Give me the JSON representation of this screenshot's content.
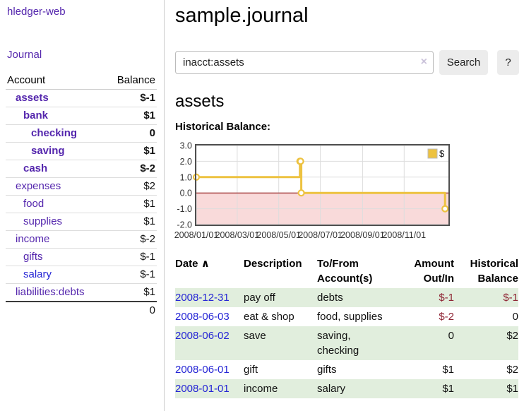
{
  "colors": {
    "link_purple": "#5426ad",
    "link_blue": "#2525d5",
    "negative_strong": "#8e2333",
    "negative_soft": "#c2868c",
    "row_stripe_green": "#e1eedd",
    "chart_series_gold": "#edc240",
    "chart_negative_fill": "#f9dada",
    "chart_zero_line": "#8b0000"
  },
  "app_title": "hledger-web",
  "sidebar": {
    "nav_journal": "Journal",
    "accounts": {
      "header_account": "Account",
      "header_balance": "Balance",
      "rows": [
        {
          "label": "assets",
          "balance": "$-1"
        },
        {
          "label": "bank",
          "balance": "$1"
        },
        {
          "label": "checking",
          "balance": "0"
        },
        {
          "label": "saving",
          "balance": "$1"
        },
        {
          "label": "cash",
          "balance": "$-2"
        },
        {
          "label": "expenses",
          "balance": "$2"
        },
        {
          "label": "food",
          "balance": "$1"
        },
        {
          "label": "supplies",
          "balance": "$1"
        },
        {
          "label": "income",
          "balance": "$-2"
        },
        {
          "label": "gifts",
          "balance": "$-1"
        },
        {
          "label": "salary",
          "balance": "$-1"
        },
        {
          "label": "liabilities:debts",
          "balance": "$1"
        }
      ],
      "total": "0"
    }
  },
  "main": {
    "title": "sample.journal",
    "search": {
      "value": "inacct:assets",
      "clear_icon": "×",
      "search_button": "Search",
      "help_button": "?"
    },
    "account_heading": "assets",
    "chart_title": "Historical Balance:"
  },
  "chart_data": {
    "type": "line",
    "title": "Historical Balance:",
    "step": true,
    "series": [
      {
        "name": "$",
        "color": "#edc240",
        "points": [
          [
            "2008-01-01",
            1
          ],
          [
            "2008-06-01",
            2
          ],
          [
            "2008-06-02",
            2
          ],
          [
            "2008-06-03",
            0
          ],
          [
            "2008-12-31",
            -1
          ]
        ]
      }
    ],
    "x_ticks": [
      {
        "label": "2008/01/01",
        "date": "2008-01-01"
      },
      {
        "label": "2008/03/01",
        "date": "2008-03-01"
      },
      {
        "label": "2008/05/01",
        "date": "2008-05-01"
      },
      {
        "label": "2008/07/01",
        "date": "2008-07-01"
      },
      {
        "label": "2008/09/01",
        "date": "2008-09-01"
      },
      {
        "label": "2008/11/01",
        "date": "2008-11-01"
      }
    ],
    "y_ticks": [
      "3.0",
      "2.0",
      "1.0",
      "0.0",
      "-1.0",
      "-2.0"
    ],
    "ylim": [
      -2,
      3
    ],
    "xlim": [
      "2008-01-01",
      "2009-01-05"
    ],
    "grid": true,
    "legend": {
      "label": "$",
      "position": "top-right"
    },
    "negative_region_fill": "#f9dada",
    "zero_line_color": "#8b0000"
  },
  "register": {
    "headers": {
      "date": "Date",
      "sort_indicator": "∧",
      "description": "Description",
      "account": "To/From Account(s)",
      "amount": "Amount Out/In",
      "balance": "Historical Balance"
    },
    "rows": [
      {
        "date": "2008-12-31",
        "description": "pay off",
        "account": "debts",
        "amount": "$-1",
        "balance": "$-1"
      },
      {
        "date": "2008-06-03",
        "description": "eat & shop",
        "account": "food, supplies",
        "amount": "$-2",
        "balance": "0"
      },
      {
        "date": "2008-06-02",
        "description": "save",
        "account": "saving, checking",
        "amount": "0",
        "balance": "$2"
      },
      {
        "date": "2008-06-01",
        "description": "gift",
        "account": "gifts",
        "amount": "$1",
        "balance": "$2"
      },
      {
        "date": "2008-01-01",
        "description": "income",
        "account": "salary",
        "amount": "$1",
        "balance": "$1"
      }
    ]
  }
}
